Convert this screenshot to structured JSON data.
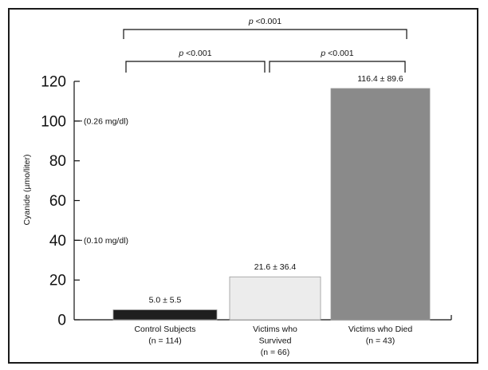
{
  "chart_data": {
    "type": "bar",
    "ylabel": "Cyanide (µmo/liter)",
    "ylim": [
      0,
      120
    ],
    "yticks": [
      0,
      20,
      40,
      60,
      80,
      100,
      120
    ],
    "grid": false,
    "categories": [
      {
        "lines": [
          "Control Subjects",
          "(n = 114)"
        ]
      },
      {
        "lines": [
          "Victims who",
          "Survived",
          "(n = 66)"
        ]
      },
      {
        "lines": [
          "Victims who Died",
          "(n = 43)"
        ]
      }
    ],
    "values": [
      5.0,
      21.6,
      116.4
    ],
    "value_labels": [
      "5.0 ± 5.5",
      "21.6 ± 36.4",
      "116.4 ± 89.6"
    ],
    "bar_colors": [
      "#1f1f1f",
      "#ececec",
      "#8a8a8a"
    ],
    "reference_lines": [
      {
        "y": 100,
        "label": "(0.26 mg/dl)"
      },
      {
        "y": 40,
        "label": "(0.10 mg/dl)"
      }
    ],
    "comparisons": [
      {
        "from": 0,
        "to": 2,
        "p_label": "p",
        "p_value": "<0.001",
        "level": "top"
      },
      {
        "from": 0,
        "to": 1,
        "p_label": "p",
        "p_value": "<0.001",
        "level": "lower"
      },
      {
        "from": 1,
        "to": 2,
        "p_label": "p",
        "p_value": "<0.001",
        "level": "lower"
      }
    ]
  }
}
